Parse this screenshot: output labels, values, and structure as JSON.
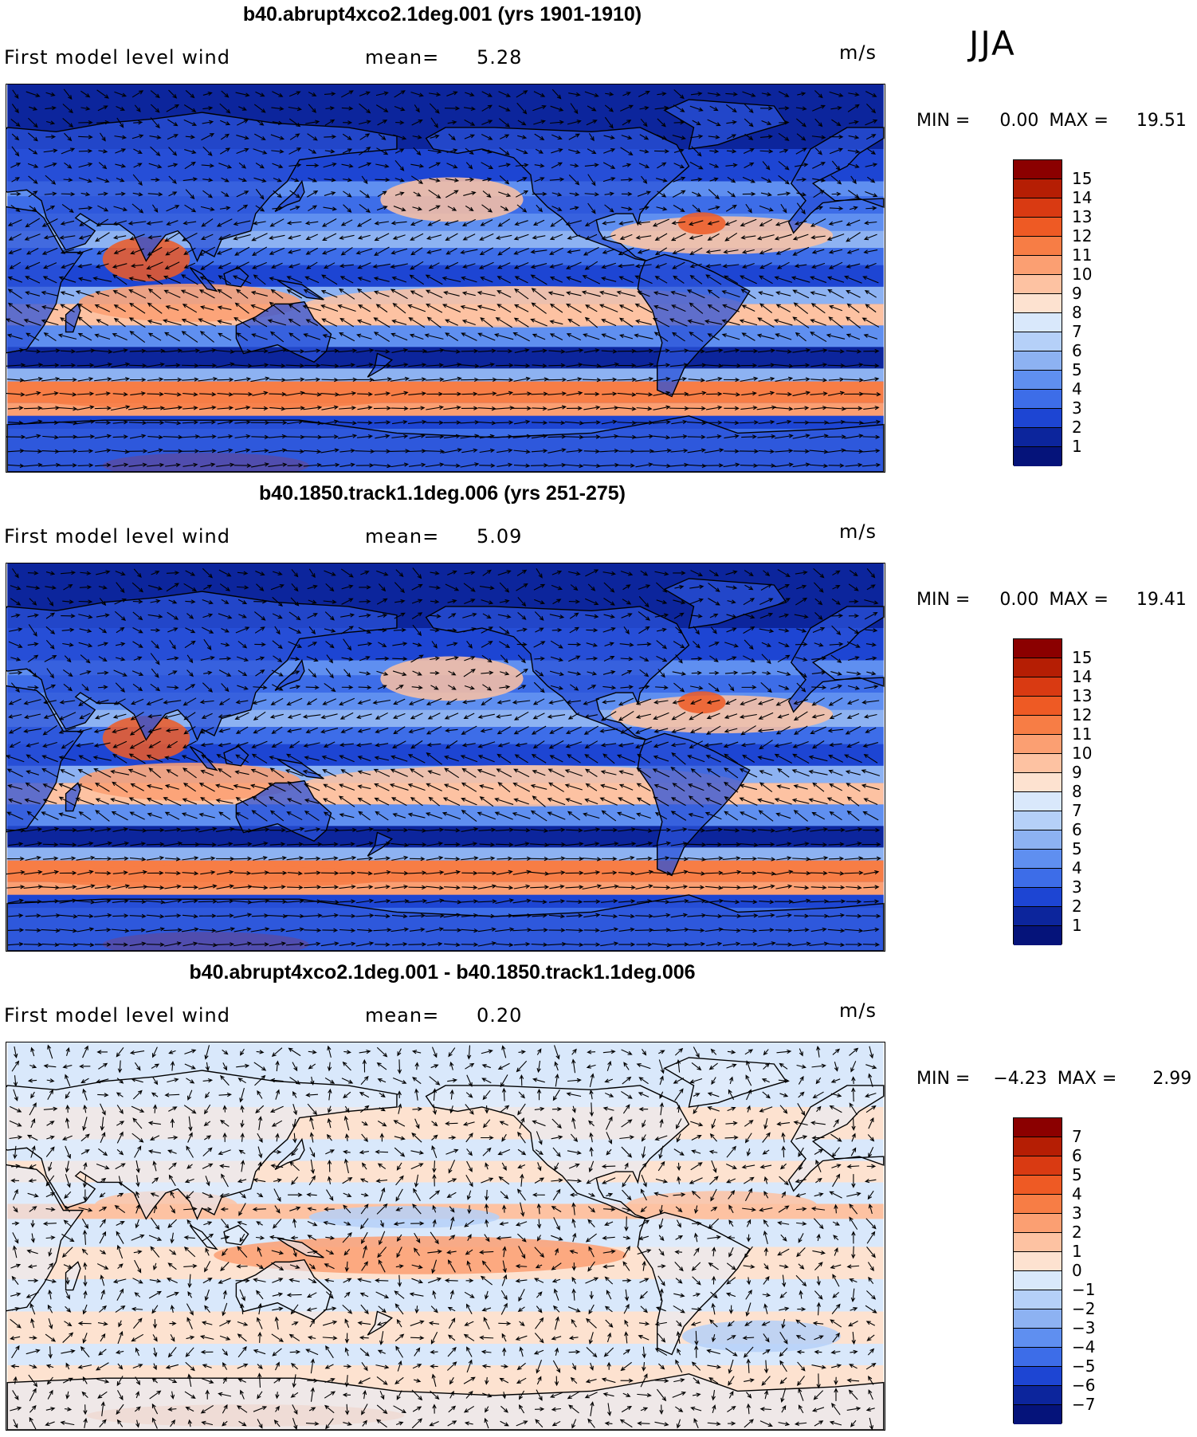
{
  "season": "JJA",
  "panels": [
    {
      "id": "p1",
      "title": "b40.abrupt4xco2.1deg.001 (yrs 1901-1910)",
      "variable": "First model level wind",
      "mean_label": "mean=",
      "mean_value": "5.28",
      "units": "m/s",
      "min_label": "MIN =",
      "min_value": "0.00",
      "max_label": "MAX =",
      "max_value": "19.51",
      "colorbar_labels": [
        "15",
        "14",
        "13",
        "12",
        "11",
        "10",
        "9",
        "8",
        "7",
        "6",
        "5",
        "4",
        "3",
        "2",
        "1"
      ],
      "colorbar_colors": [
        "#8b0000",
        "#b51e04",
        "#d93a12",
        "#ee5a24",
        "#f77d45",
        "#fb9f72",
        "#fdc2a2",
        "#fde2d0",
        "#d9e8fb",
        "#b5d0f8",
        "#8db2f2",
        "#5f8ff0",
        "#3d6de8",
        "#1d45d3",
        "#0c259c",
        "#05137a"
      ],
      "style": "positive"
    },
    {
      "id": "p2",
      "title": "b40.1850.track1.1deg.006 (yrs 251-275)",
      "variable": "First model level wind",
      "mean_label": "mean=",
      "mean_value": "5.09",
      "units": "m/s",
      "min_label": "MIN =",
      "min_value": "0.00",
      "max_label": "MAX =",
      "max_value": "19.41",
      "colorbar_labels": [
        "15",
        "14",
        "13",
        "12",
        "11",
        "10",
        "9",
        "8",
        "7",
        "6",
        "5",
        "4",
        "3",
        "2",
        "1"
      ],
      "colorbar_colors": [
        "#8b0000",
        "#b51e04",
        "#d93a12",
        "#ee5a24",
        "#f77d45",
        "#fb9f72",
        "#fdc2a2",
        "#fde2d0",
        "#d9e8fb",
        "#b5d0f8",
        "#8db2f2",
        "#5f8ff0",
        "#3d6de8",
        "#1d45d3",
        "#0c259c",
        "#05137a"
      ],
      "style": "positive"
    },
    {
      "id": "p3",
      "title": "b40.abrupt4xco2.1deg.001 - b40.1850.track1.1deg.006",
      "variable": "First model level wind",
      "mean_label": "mean=",
      "mean_value": "0.20",
      "units": "m/s",
      "min_label": "MIN =",
      "min_value": "−4.23",
      "max_label": "MAX =",
      "max_value": "2.99",
      "colorbar_labels": [
        "7",
        "6",
        "5",
        "4",
        "3",
        "2",
        "1",
        "0",
        "−1",
        "−2",
        "−3",
        "−4",
        "−5",
        "−6",
        "−7"
      ],
      "colorbar_colors": [
        "#8b0000",
        "#b51e04",
        "#d93a12",
        "#ee5a24",
        "#f77d45",
        "#fb9f72",
        "#fdc2a2",
        "#fde2d0",
        "#d9e8fb",
        "#b5d0f8",
        "#8db2f2",
        "#5f8ff0",
        "#3d6de8",
        "#1d45d3",
        "#0c259c",
        "#05137a"
      ],
      "style": "difference"
    }
  ]
}
